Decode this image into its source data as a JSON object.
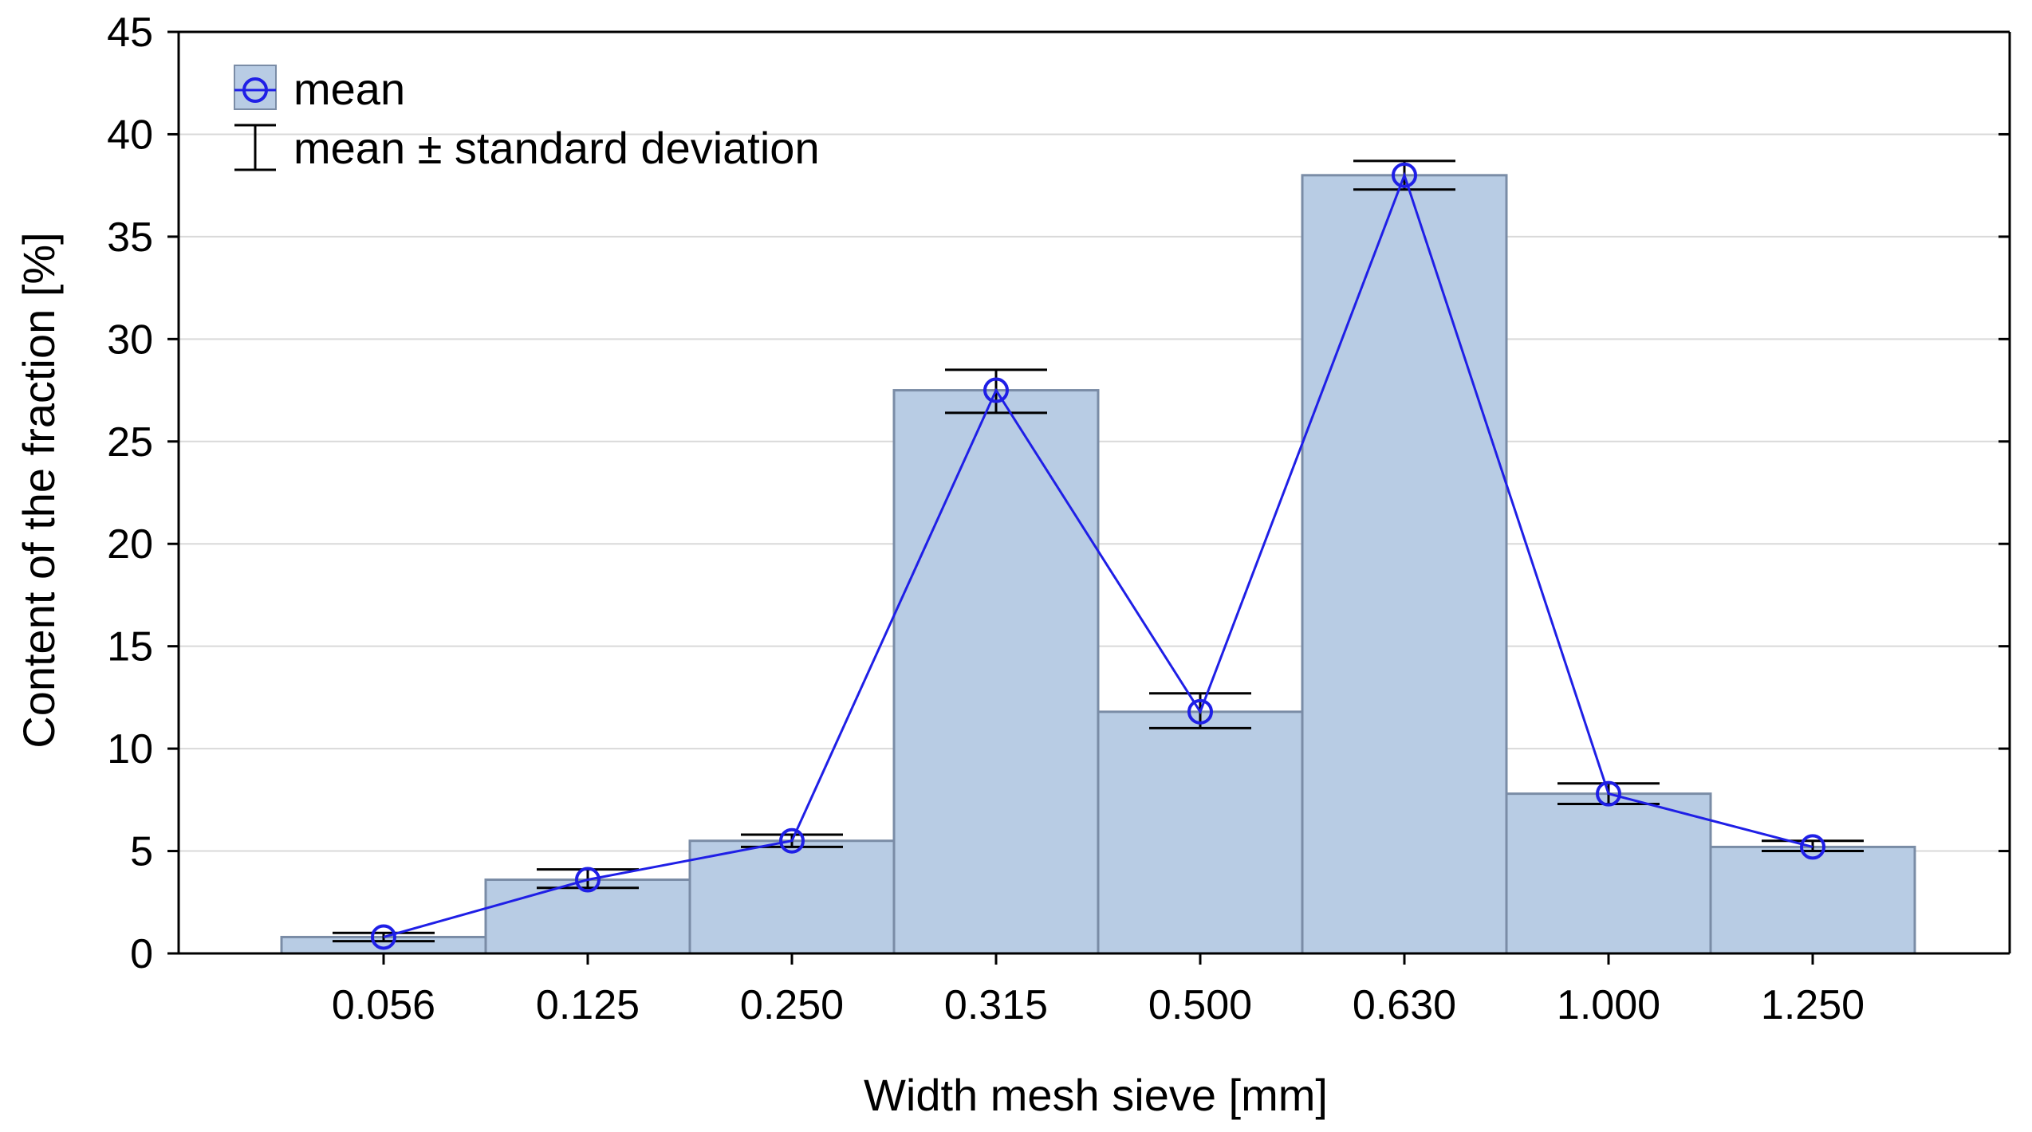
{
  "chart_data": {
    "type": "bar",
    "title": "",
    "xlabel": "Width mesh sieve [mm]",
    "ylabel": "Content of the fraction [%]",
    "ylim": [
      0,
      45
    ],
    "yticks": [
      0,
      5,
      10,
      15,
      20,
      25,
      30,
      35,
      40,
      45
    ],
    "grid": true,
    "legend_position": "top-left",
    "categories": [
      "0.056",
      "0.125",
      "0.250",
      "0.315",
      "0.500",
      "0.630",
      "1.000",
      "1.250"
    ],
    "series": [
      {
        "name": "mean",
        "style": "bar+line",
        "values": [
          0.8,
          3.6,
          5.5,
          27.5,
          11.8,
          38.0,
          7.8,
          5.2
        ],
        "error_low": [
          0.6,
          3.2,
          5.2,
          26.4,
          11.0,
          37.3,
          7.3,
          5.0
        ],
        "error_high": [
          1.0,
          4.1,
          5.8,
          28.5,
          12.7,
          38.7,
          8.3,
          5.5
        ]
      }
    ],
    "legend": {
      "mean_label": "mean",
      "errorbar_label": "mean ± standard deviation"
    },
    "colors": {
      "bar_fill": "#b8cce4",
      "bar_stroke": "#7a8ca6",
      "line": "#1f1fe6",
      "errorbar": "#000000",
      "grid": "#d9d9d9"
    }
  }
}
